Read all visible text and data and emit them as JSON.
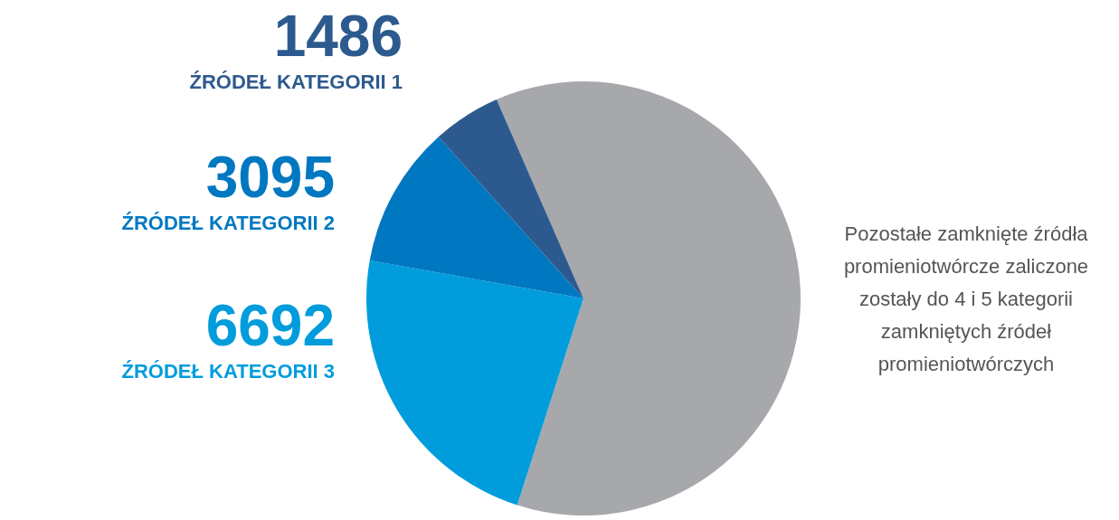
{
  "chart_data": {
    "type": "pie",
    "categories": [
      null,
      "ŹRÓDEŁ KATEGORII 3",
      "ŹRÓDEŁ KATEGORII 2",
      "ŹRÓDEŁ KATEGORII 1"
    ],
    "values": [
      18000,
      6692,
      3095,
      1486
    ],
    "colors": [
      "#a7a8ab",
      "#009cdc",
      "#0078c1",
      "#2d5a8e"
    ],
    "value_labels": [
      null,
      "6692",
      "3095",
      "1486"
    ],
    "annotations": [
      "Pozostałe zamknięte źródła promieniotwórcze zaliczone zostały do 4 i 5 kategorii zamkniętych źródeł promieniotwórczych"
    ]
  }
}
